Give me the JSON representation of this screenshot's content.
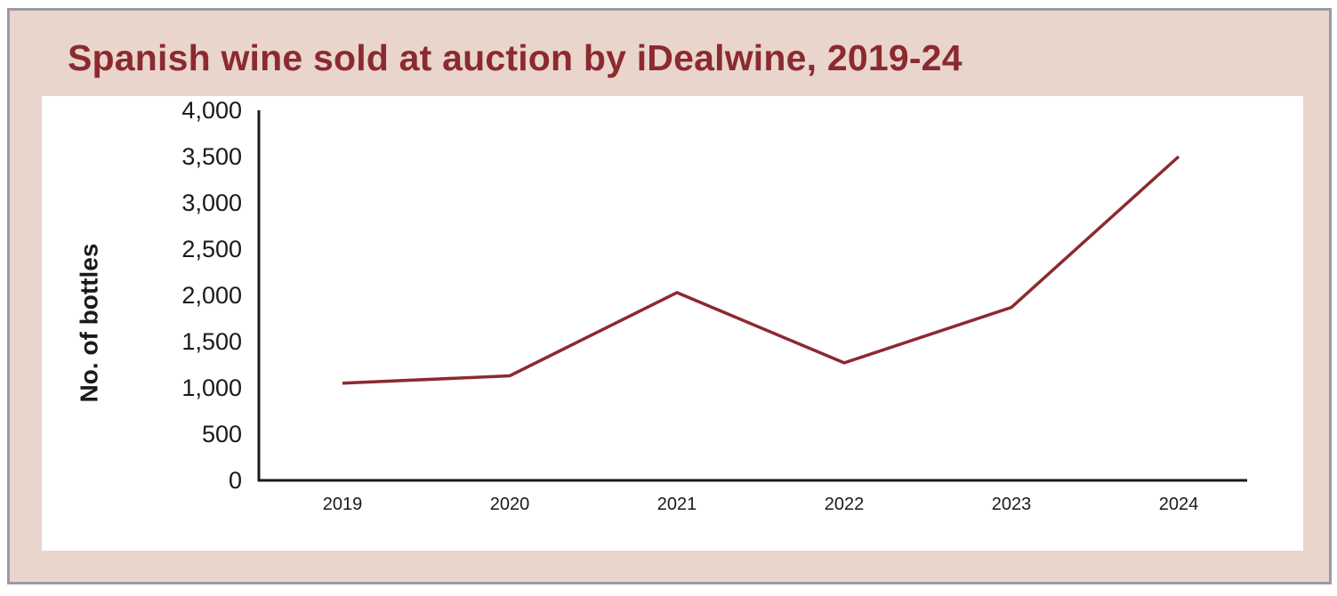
{
  "chart_data": {
    "type": "line",
    "title": "Spanish wine sold at auction by iDealwine, 2019-24",
    "ylabel": "No. of bottles",
    "xlabel": "",
    "categories": [
      "2019",
      "2020",
      "2021",
      "2022",
      "2023",
      "2024"
    ],
    "series": [
      {
        "values": [
          1050,
          1130,
          2030,
          1270,
          1870,
          3500
        ]
      }
    ],
    "ylim": [
      0,
      4000
    ],
    "yticks": [
      "0",
      "500",
      "1,000",
      "1,500",
      "2,000",
      "2,500",
      "3,000",
      "3,500",
      "4,000"
    ],
    "grid": false,
    "legend": "none",
    "colors": {
      "line": "#8b2a2f",
      "title": "#8b2a2f",
      "frame_bg": "#ead5cd",
      "border": "#9a9aa2",
      "axis": "#1a1a1a"
    }
  }
}
